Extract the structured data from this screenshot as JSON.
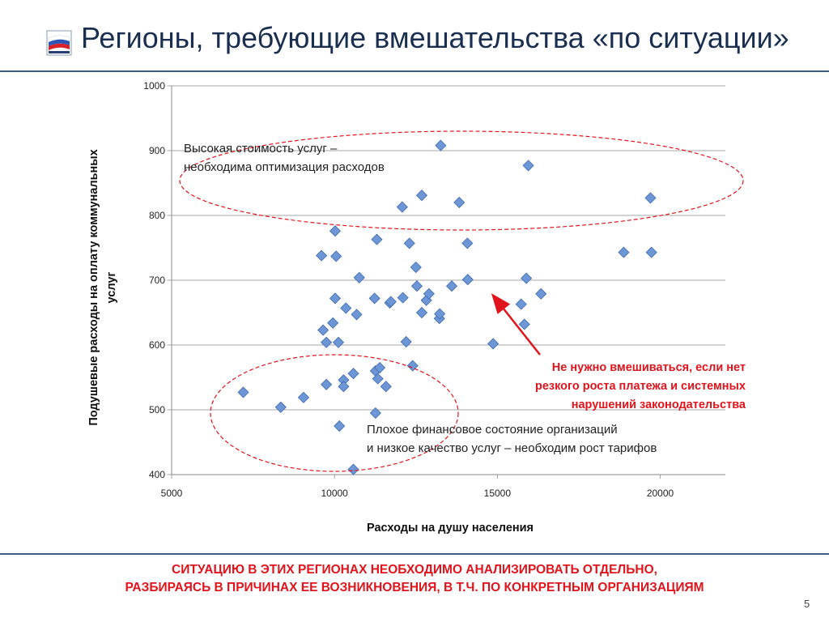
{
  "slide": {
    "title": "Регионы, требующие вмешательства «по ситуации»",
    "footer_line1": "СИТУАЦИЮ В ЭТИХ РЕГИОНАХ НЕОБХОДИМО АНАЛИЗИРОВАТЬ ОТДЕЛЬНО,",
    "footer_line2": "РАЗБИРАЯСЬ В ПРИЧИНАХ ЕЕ ВОЗНИКНОВЕНИЯ, В Т.Ч. ПО КОНКРЕТНЫМ ОРГАНИЗАЦИЯМ",
    "page_number": "5",
    "logo_icon": "russian-flag-logo-icon",
    "accent_color": "#e0141c",
    "title_color": "#1a2f4f"
  },
  "chart_data": {
    "type": "scatter",
    "xlabel": "Расходы на душу населения",
    "ylabel_line1": "Подушевые расходы на оплату коммунальных",
    "ylabel_line2": "услуг",
    "xlim": [
      5000,
      22000
    ],
    "ylim": [
      400,
      1000
    ],
    "xticks": [
      5000,
      10000,
      15000,
      20000
    ],
    "yticks": [
      400,
      500,
      600,
      700,
      800,
      900,
      1000
    ],
    "grid": "horizontal",
    "marker": "diamond",
    "marker_color": "#6d96d6",
    "points": [
      [
        7200,
        527
      ],
      [
        8350,
        504
      ],
      [
        9050,
        519
      ],
      [
        9600,
        738
      ],
      [
        9650,
        623
      ],
      [
        9750,
        604
      ],
      [
        9750,
        539
      ],
      [
        9950,
        634
      ],
      [
        10020,
        672
      ],
      [
        10020,
        776
      ],
      [
        10050,
        737
      ],
      [
        10120,
        604
      ],
      [
        10150,
        475
      ],
      [
        10280,
        546
      ],
      [
        10280,
        536
      ],
      [
        10350,
        657
      ],
      [
        10580,
        556
      ],
      [
        10580,
        408
      ],
      [
        10680,
        647
      ],
      [
        10760,
        704
      ],
      [
        11230,
        672
      ],
      [
        11260,
        560
      ],
      [
        11260,
        495
      ],
      [
        11300,
        763
      ],
      [
        11330,
        548
      ],
      [
        11390,
        565
      ],
      [
        11580,
        536
      ],
      [
        11700,
        665
      ],
      [
        11730,
        667
      ],
      [
        12080,
        813
      ],
      [
        12100,
        673
      ],
      [
        12200,
        605
      ],
      [
        12300,
        757
      ],
      [
        12400,
        568
      ],
      [
        12500,
        720
      ],
      [
        12530,
        691
      ],
      [
        12680,
        831
      ],
      [
        12680,
        650
      ],
      [
        12820,
        669
      ],
      [
        12900,
        679
      ],
      [
        13220,
        641
      ],
      [
        13230,
        648
      ],
      [
        13260,
        908
      ],
      [
        13600,
        691
      ],
      [
        13830,
        820
      ],
      [
        14080,
        757
      ],
      [
        14090,
        701
      ],
      [
        14870,
        602
      ],
      [
        15730,
        663
      ],
      [
        15830,
        632
      ],
      [
        15890,
        703
      ],
      [
        15950,
        877
      ],
      [
        16340,
        679
      ],
      [
        18880,
        743
      ],
      [
        19700,
        827
      ],
      [
        19730,
        743
      ]
    ],
    "annotations": [
      {
        "id": "high-cost",
        "line1": "Высокая стоимость услуг –",
        "line2": "необходима оптимизация расходов",
        "color": "#222222"
      },
      {
        "id": "poor-finance",
        "line1": "Плохое финансовое состояние организаций",
        "line2": "и низкое качество услуг – необходим рост тарифов",
        "color": "#222222"
      },
      {
        "id": "no-intervention",
        "line1": "Не нужно вмешиваться, если нет",
        "line2": "резкого роста платежа и системных",
        "line3": "нарушений законодательства",
        "color": "#e0141c"
      }
    ]
  }
}
